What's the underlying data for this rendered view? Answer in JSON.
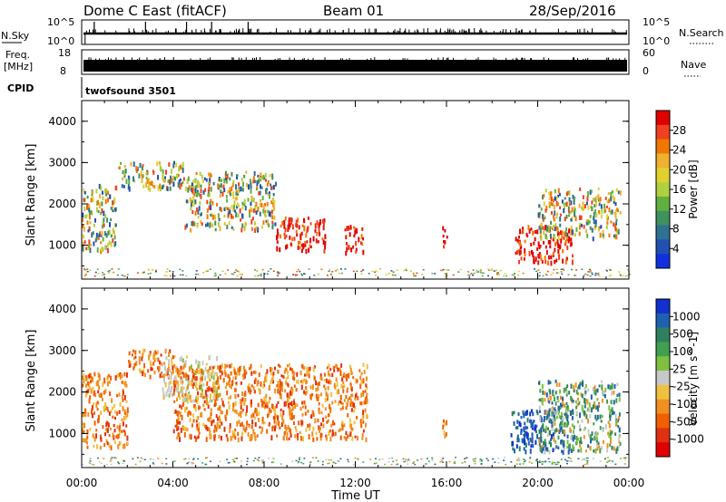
{
  "header": {
    "station": "Dome C East (fitACF)",
    "beam": "Beam 01",
    "date": "28/Sep/2016"
  },
  "strips": {
    "nsky_label": "N.Sky",
    "nsearch_label": "N.Search",
    "nsky_ticks": [
      "10^5",
      "10^0"
    ],
    "nsearch_ticks": [
      "10^5",
      "10^0"
    ],
    "freq_label_1": "Freq.",
    "freq_label_2": "[MHz]",
    "freq_ticks": [
      "18",
      "8"
    ],
    "nave_label": "Nave",
    "nave_ticks": [
      "60",
      "0"
    ],
    "cpid_label": "CPID",
    "cpid_value": "twofsound 3501"
  },
  "chart_data": [
    {
      "type": "heatmap",
      "name": "power-panel",
      "ylabel": "Slant Range [km]",
      "ylim": [
        180,
        4500
      ],
      "y_ticks": [
        "1000",
        "2000",
        "3000",
        "4000"
      ],
      "colorbar_label": "Power [dB]",
      "colorbar_ticks": [
        "28",
        "24",
        "20",
        "16",
        "12",
        "8",
        "4"
      ],
      "colorbar_colors": [
        "#e00000",
        "#f04020",
        "#f07800",
        "#f0b030",
        "#e0d030",
        "#b0d040",
        "#60b040",
        "#409060",
        "#307090",
        "#2050b0",
        "#1030e0"
      ],
      "scatter_regions": [
        {
          "t0": 0.0,
          "t1": 1.5,
          "r0": 900,
          "r1": 2500,
          "level": "mid"
        },
        {
          "t0": 1.5,
          "t1": 4.5,
          "r0": 2400,
          "r1": 3050,
          "level": "mid"
        },
        {
          "t0": 4.5,
          "t1": 8.5,
          "r0": 1400,
          "r1": 2800,
          "level": "mid"
        },
        {
          "t0": 8.5,
          "t1": 10.7,
          "r0": 900,
          "r1": 1700,
          "level": "high"
        },
        {
          "t0": 11.5,
          "t1": 12.4,
          "r0": 850,
          "r1": 1500,
          "level": "high"
        },
        {
          "t0": 15.8,
          "t1": 16.0,
          "r0": 900,
          "r1": 1500,
          "level": "high"
        },
        {
          "t0": 19.0,
          "t1": 21.5,
          "r0": 600,
          "r1": 1500,
          "level": "high"
        },
        {
          "t0": 20.0,
          "t1": 23.6,
          "r0": 1200,
          "r1": 2400,
          "level": "mid"
        }
      ]
    },
    {
      "type": "heatmap",
      "name": "velocity-panel",
      "ylabel": "Slant Range [km]",
      "ylim": [
        180,
        4500
      ],
      "y_ticks": [
        "1000",
        "2000",
        "3000",
        "4000"
      ],
      "colorbar_label": "Velocity [m s^-1]",
      "colorbar_ticks": [
        "1000",
        "500",
        "100",
        "25",
        "-25",
        "-100",
        "-500",
        "-1000"
      ],
      "colorbar_colors": [
        "#1030d0",
        "#2060b0",
        "#308060",
        "#40a050",
        "#80c040",
        "#c8c8c8",
        "#f0c040",
        "#f09020",
        "#f06000",
        "#e03010",
        "#e00000"
      ],
      "scatter_regions": [
        {
          "t0": 0.0,
          "t1": 2.0,
          "r0": 700,
          "r1": 2500,
          "level": "neg"
        },
        {
          "t0": 2.0,
          "t1": 4.0,
          "r0": 2400,
          "r1": 3050,
          "level": "neg"
        },
        {
          "t0": 3.5,
          "t1": 6.0,
          "r0": 1800,
          "r1": 2900,
          "level": "zero"
        },
        {
          "t0": 4.0,
          "t1": 12.5,
          "r0": 900,
          "r1": 2700,
          "level": "neg"
        },
        {
          "t0": 15.8,
          "t1": 16.0,
          "r0": 900,
          "r1": 1500,
          "level": "neg"
        },
        {
          "t0": 18.8,
          "t1": 21.5,
          "r0": 600,
          "r1": 1600,
          "level": "pos"
        },
        {
          "t0": 20.0,
          "t1": 23.6,
          "r0": 600,
          "r1": 2300,
          "level": "mixpos"
        }
      ]
    }
  ],
  "x_axis": {
    "label": "Time UT",
    "ticks": [
      "00:00",
      "04:00",
      "08:00",
      "12:00",
      "16:00",
      "20:00",
      "00:00"
    ],
    "xlim_hours": [
      0,
      24
    ]
  }
}
